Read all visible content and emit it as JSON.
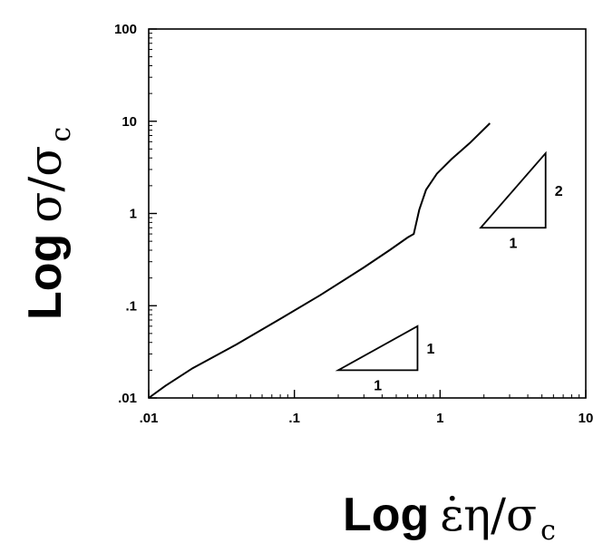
{
  "chart_data": {
    "type": "line",
    "x_scale": "log",
    "y_scale": "log",
    "xlim": [
      0.01,
      10
    ],
    "ylim": [
      0.01,
      100
    ],
    "grid": false,
    "x_ticks": [
      ".01",
      ".1",
      "1",
      "10"
    ],
    "y_ticks": [
      ".01",
      ".1",
      "1",
      "10",
      "100"
    ],
    "xlabel": {
      "prefix": "Log",
      "symbol": "ε̇η/σ",
      "subscript": "c"
    },
    "ylabel": {
      "prefix": "Log",
      "symbol": "σ/σ",
      "subscript": "c"
    },
    "series": [
      {
        "x": [
          0.01,
          0.013,
          0.02,
          0.04,
          0.08,
          0.15,
          0.3,
          0.45,
          0.6,
          0.66,
          0.72,
          0.8,
          0.95,
          1.2,
          1.6,
          2.2
        ],
        "y": [
          0.01,
          0.0135,
          0.021,
          0.038,
          0.072,
          0.13,
          0.26,
          0.4,
          0.55,
          0.6,
          1.1,
          1.8,
          2.7,
          3.9,
          5.8,
          9.5
        ]
      }
    ],
    "annotations": [
      {
        "type": "slope-triangle",
        "run_label": "1",
        "rise_label": "1",
        "x_from": 0.2,
        "x_to": 0.7,
        "y_from": 0.02,
        "y_to": 0.06
      },
      {
        "type": "slope-triangle",
        "run_label": "1",
        "rise_label": "2",
        "x_from": 1.9,
        "x_to": 5.3,
        "y_from": 0.7,
        "y_to": 4.5
      }
    ]
  }
}
